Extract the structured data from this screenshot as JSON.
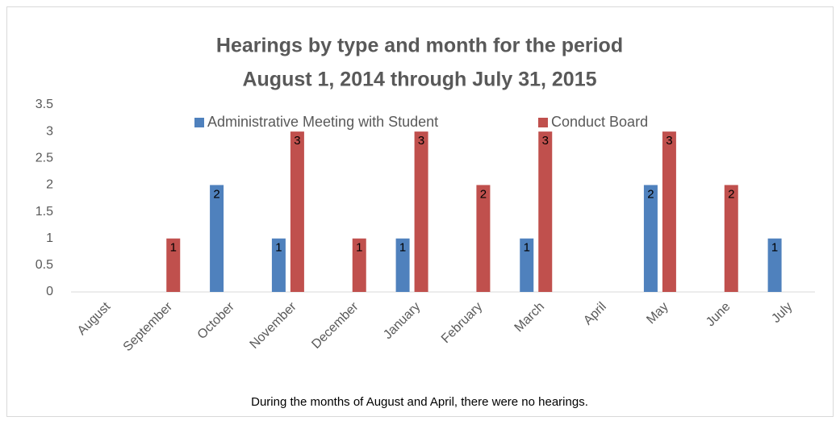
{
  "chart_data": {
    "type": "bar",
    "title": [
      "Hearings by type and month for the period",
      "August 1, 2014 through July 31, 2015"
    ],
    "categories": [
      "August",
      "September",
      "October",
      "November",
      "December",
      "January",
      "February",
      "March",
      "April",
      "May",
      "June",
      "July"
    ],
    "series": [
      {
        "name": "Administrative Meeting with Student",
        "color": "#4f81bd",
        "values": [
          0,
          0,
          2,
          1,
          0,
          1,
          0,
          1,
          0,
          2,
          0,
          1
        ]
      },
      {
        "name": "Conduct Board",
        "color": "#c0504d",
        "values": [
          0,
          1,
          0,
          3,
          1,
          3,
          2,
          3,
          0,
          3,
          2,
          0
        ]
      }
    ],
    "ylim": [
      0,
      3.5
    ],
    "yticks": [
      0,
      0.5,
      1,
      1.5,
      2,
      2.5,
      3,
      3.5
    ],
    "legend": "top",
    "data_labels": true,
    "grid": false,
    "annotation": "During the months of August and April, there were no hearings."
  }
}
